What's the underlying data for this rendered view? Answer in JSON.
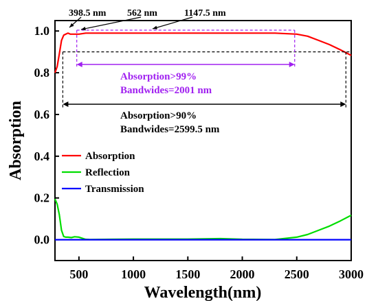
{
  "chart_data": {
    "type": "line",
    "xlabel": "Wavelength(nm)",
    "ylabel": "Absorption",
    "xlim": [
      280,
      3000
    ],
    "ylim": [
      -0.1,
      1.05
    ],
    "xticks": [
      500,
      1000,
      1500,
      2000,
      2500,
      3000
    ],
    "yticks": [
      0.0,
      0.2,
      0.4,
      0.6,
      0.8,
      1.0
    ],
    "xtick_labels": [
      "500",
      "1000",
      "1500",
      "2000",
      "2500",
      "3000"
    ],
    "ytick_labels": [
      "0.0",
      "0.2",
      "0.4",
      "0.6",
      "0.8",
      "1.0"
    ],
    "legend_position": "middle-left",
    "series": [
      {
        "name": "Absorption",
        "color": "#ff0000",
        "x": [
          280,
          300,
          320,
          340,
          360,
          380,
          398.5,
          420,
          450,
          500,
          562,
          700,
          1000,
          1147.5,
          1500,
          2000,
          2300,
          2500,
          2600,
          2700,
          2800,
          2900,
          3000
        ],
        "y": [
          0.8,
          0.83,
          0.89,
          0.955,
          0.98,
          0.985,
          0.99,
          0.985,
          0.985,
          0.985,
          0.99,
          0.99,
          0.99,
          0.99,
          0.99,
          0.99,
          0.99,
          0.985,
          0.975,
          0.955,
          0.935,
          0.91,
          0.883
        ]
      },
      {
        "name": "Reflection",
        "color": "#00dd00",
        "x": [
          280,
          300,
          320,
          340,
          360,
          380,
          400,
          430,
          460,
          500,
          560,
          600,
          800,
          1000,
          1500,
          1800,
          2000,
          2300,
          2500,
          2600,
          2700,
          2800,
          2900,
          3000
        ],
        "y": [
          0.195,
          0.17,
          0.12,
          0.045,
          0.015,
          0.012,
          0.012,
          0.01,
          0.014,
          0.012,
          0.002,
          0.001,
          0.002,
          0.003,
          0.003,
          0.005,
          0.002,
          0.001,
          0.012,
          0.025,
          0.045,
          0.065,
          0.09,
          0.117
        ]
      },
      {
        "name": "Transmission",
        "color": "#0000ff",
        "x": [
          280,
          3000
        ],
        "y": [
          0.0,
          0.0
        ]
      }
    ],
    "annotations": {
      "peaks": [
        "398.5 nm",
        "562 nm",
        "1147.5 nm"
      ],
      "band99": {
        "range": [
          480,
          2481
        ],
        "level": 0.99,
        "line1": "Absorption>99%",
        "line2": "Bandwides=2001 nm",
        "color": "#a020f0"
      },
      "band90": {
        "range": [
          352,
          2951.5
        ],
        "level": 0.9,
        "line1": "Absorption>90%",
        "line2": "Bandwides=2599.5 nm",
        "color": "#000000"
      }
    }
  }
}
